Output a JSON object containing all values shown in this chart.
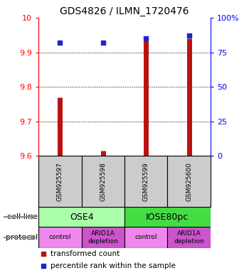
{
  "title": "GDS4826 / ILMN_1720476",
  "samples": [
    "GSM925597",
    "GSM925598",
    "GSM925599",
    "GSM925600"
  ],
  "transformed_counts": [
    9.77,
    9.615,
    9.94,
    9.94
  ],
  "percentile_ranks": [
    82,
    82,
    85,
    87
  ],
  "ymin": 9.6,
  "ymax": 10.0,
  "yticks": [
    9.6,
    9.7,
    9.8,
    9.9,
    10.0
  ],
  "ytick_labels": [
    "9.6",
    "9.7",
    "9.8",
    "9.9",
    "10"
  ],
  "y2ticks": [
    0,
    25,
    50,
    75,
    100
  ],
  "y2labels": [
    "0",
    "25",
    "50",
    "75",
    "100%"
  ],
  "cell_lines": [
    {
      "label": "OSE4",
      "color": "#aaffaa",
      "span": [
        0,
        2
      ]
    },
    {
      "label": "IOSE80pc",
      "color": "#44dd44",
      "span": [
        2,
        4
      ]
    }
  ],
  "protocols": [
    {
      "label": "control",
      "color": "#ee88ee",
      "span": [
        0,
        1
      ]
    },
    {
      "label": "ARID1A\ndepletion",
      "color": "#cc55cc",
      "span": [
        1,
        2
      ]
    },
    {
      "label": "control",
      "color": "#ee88ee",
      "span": [
        2,
        3
      ]
    },
    {
      "label": "ARID1A\ndepletion",
      "color": "#cc55cc",
      "span": [
        3,
        4
      ]
    }
  ],
  "bar_color": "#bb1111",
  "dot_color": "#2222cc",
  "sample_box_color": "#cccccc",
  "grid_yticks": [
    9.7,
    9.8,
    9.9
  ]
}
